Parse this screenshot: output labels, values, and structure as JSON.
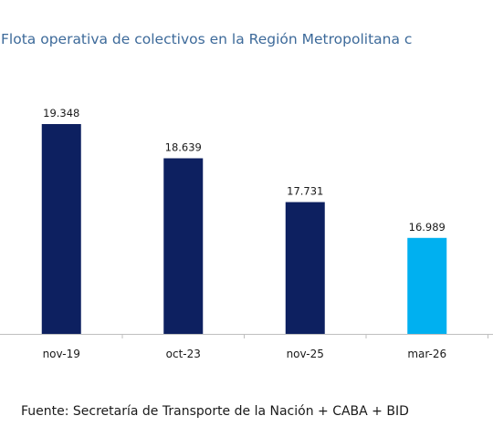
{
  "chart_data": {
    "type": "bar",
    "title": "Flota operativa de colectivos en la Región Metropolitana c",
    "categories": [
      "nov-19",
      "oct-23",
      "nov-25",
      "mar-26"
    ],
    "values": [
      19348,
      18639,
      17731,
      16989
    ],
    "value_labels": [
      "19.348",
      "18.639",
      "17.731",
      "16.989"
    ],
    "colors": [
      "#0d2060",
      "#0d2060",
      "#0d2060",
      "#00b0f0"
    ],
    "xlabel": "",
    "ylabel": "",
    "ylim": [
      15000,
      19348
    ],
    "grid": false,
    "legend": "none"
  },
  "source": "Fuente: Secretaría de Transporte de la Nación + CABA + BID"
}
